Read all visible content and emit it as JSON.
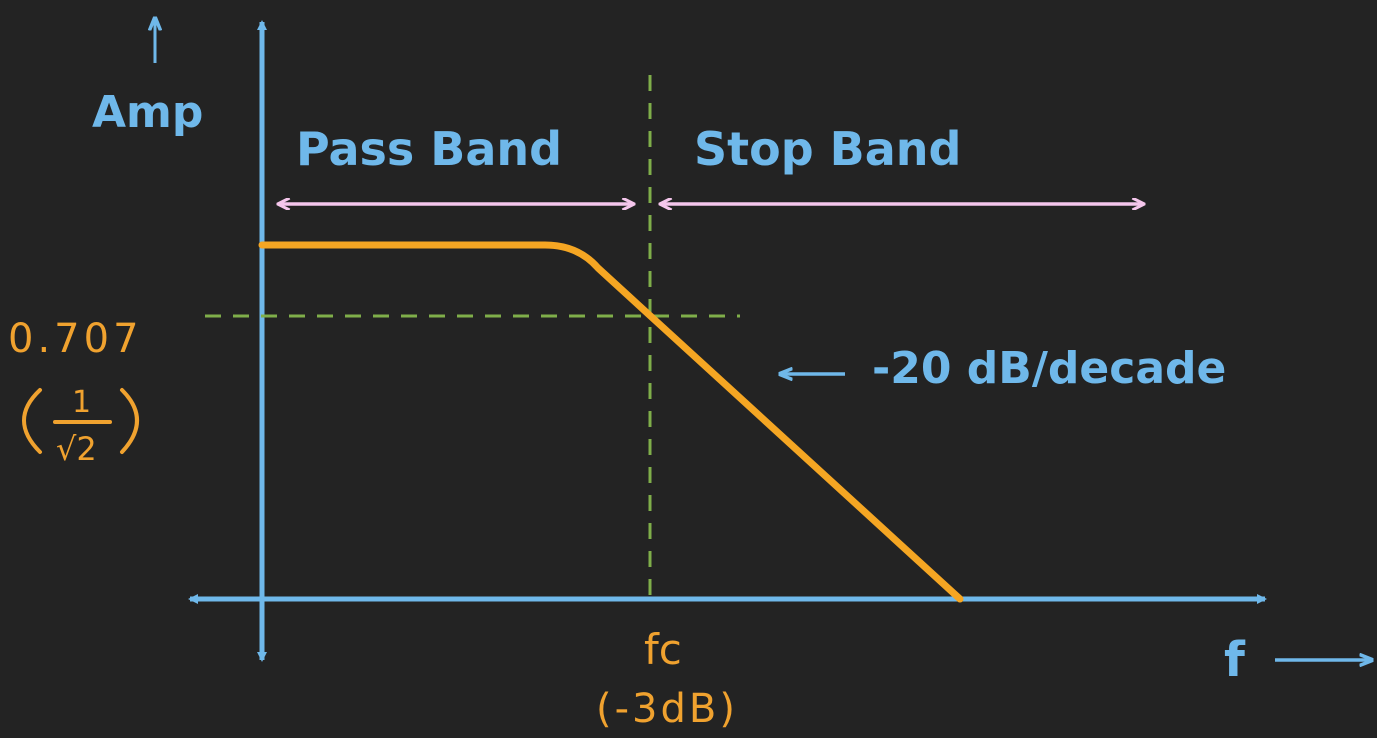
{
  "diagram": {
    "y_axis_label": "Amp",
    "x_axis_label": "f",
    "pass_band_label": "Pass Band",
    "stop_band_label": "Stop Band",
    "slope_label": "-20 dB/decade",
    "cutoff_level_label": "0.707",
    "cutoff_level_fraction_num": "1",
    "cutoff_level_fraction_den": "√2",
    "cutoff_freq_label": "fc",
    "cutoff_freq_db_label": "(-3dB)"
  },
  "colors": {
    "background": "#232323",
    "axis": "#6fb8ea",
    "response": "#f5a623",
    "guide": "#7fae4a",
    "band_arrow": "#f5c6ec",
    "annotation": "#f0a22f"
  }
}
